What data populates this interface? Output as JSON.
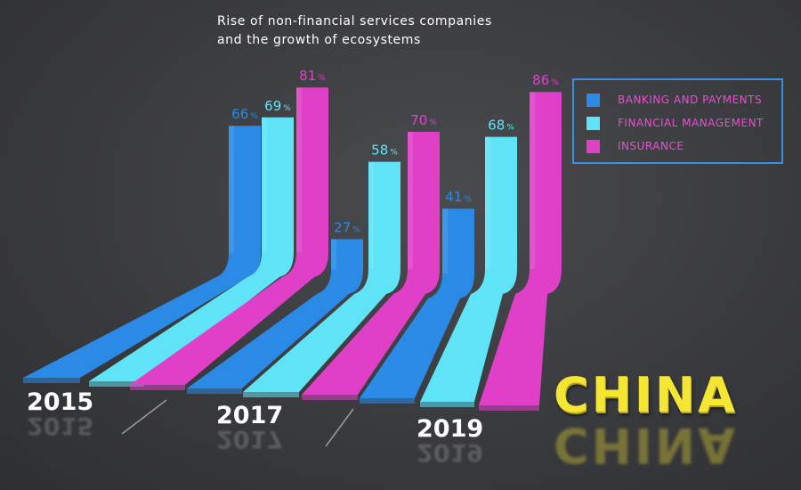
{
  "title_line1": "Rise of non-financial services companies",
  "title_line2": "and the growth of ecosystems",
  "country": "CHINA",
  "colors": {
    "banking": "#2a8ae6",
    "financial": "#5fe4f7",
    "insurance": "#e040c8",
    "country": "#f4e632",
    "legend_border": "#3a8fe0"
  },
  "legend": [
    {
      "label": "BANKING AND PAYMENTS",
      "color": "#2a8ae6",
      "text_color": "#e84fd0"
    },
    {
      "label": "FINANCIAL MANAGEMENT",
      "color": "#5fe4f7",
      "text_color": "#e84fd0"
    },
    {
      "label": "INSURANCE",
      "color": "#e040c8",
      "text_color": "#e84fd0"
    }
  ],
  "chart_data": {
    "type": "bar",
    "title": "Rise of non-financial services companies and the growth of ecosystems",
    "categories": [
      "2015",
      "2017",
      "2019"
    ],
    "series": [
      {
        "name": "BANKING AND PAYMENTS",
        "values": [
          66,
          27,
          41
        ]
      },
      {
        "name": "FINANCIAL MANAGEMENT",
        "values": [
          69,
          58,
          68
        ]
      },
      {
        "name": "INSURANCE",
        "values": [
          81,
          70,
          86
        ]
      }
    ],
    "unit": "%",
    "legend_position": "top-right",
    "grid": false
  }
}
